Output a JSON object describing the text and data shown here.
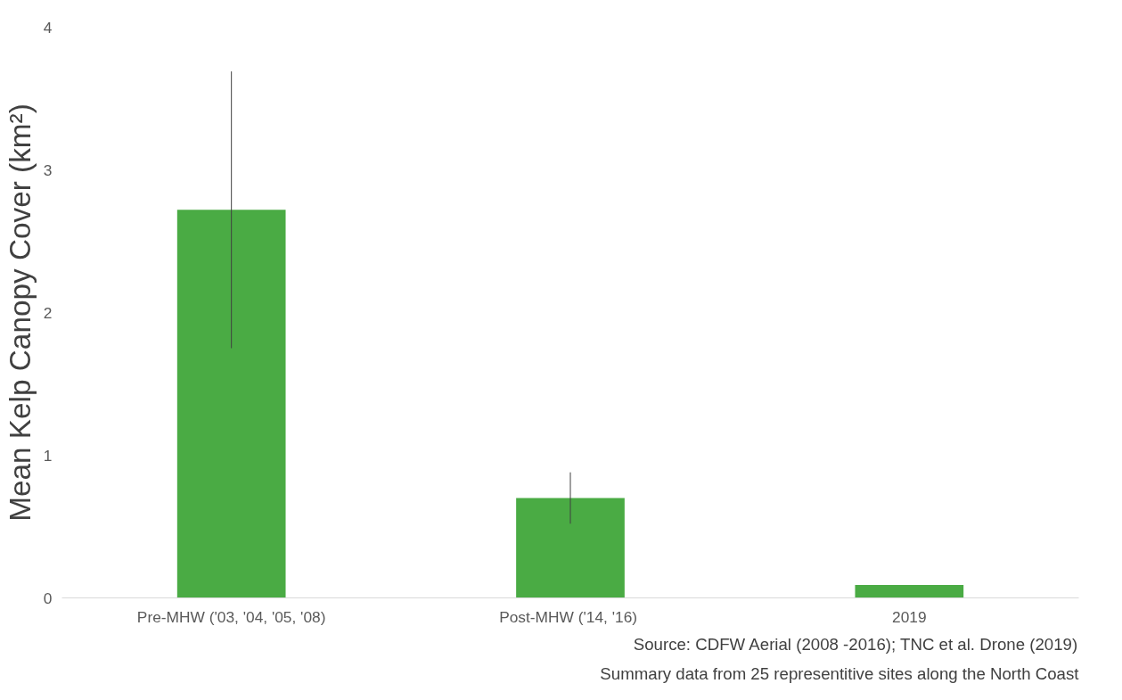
{
  "chart_data": {
    "type": "bar",
    "ylabel": "Mean Kelp Canopy Cover (km²)",
    "categories": [
      "Pre-MHW ('03, '04, '05, '08)",
      "Post-MHW ('14,  '16)",
      "2019"
    ],
    "values": [
      2.72,
      0.7,
      0.09
    ],
    "errors": [
      0.97,
      0.18,
      null
    ],
    "color": "#4aab44",
    "ylim": [
      0,
      4
    ],
    "yticks": [
      0,
      1,
      2,
      3,
      4
    ],
    "grid": false,
    "annotations": [
      "Source: CDFW Aerial (2008 -2016); TNC et al. Drone (2019)",
      "Summary data from 25 representitive sites along the North Coast"
    ]
  }
}
